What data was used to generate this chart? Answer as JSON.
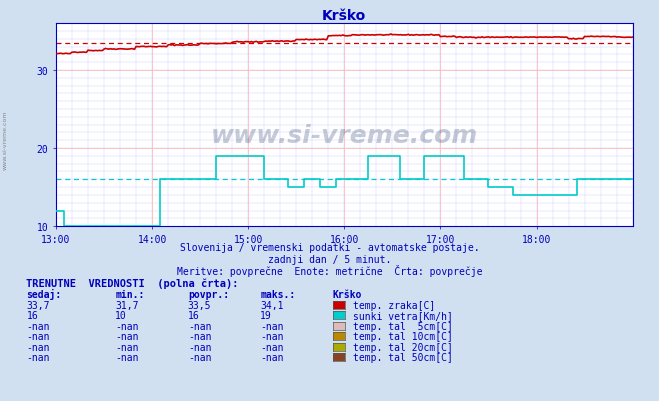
{
  "title": "Krško",
  "bg_color": "#d0e0f0",
  "plot_bg_color": "#ffffff",
  "grid_color_major": "#ffbbbb",
  "grid_color_minor": "#ccccff",
  "xlim": [
    0,
    360
  ],
  "ylim": [
    10,
    36
  ],
  "yticks": [
    10,
    20,
    30
  ],
  "xtick_labels": [
    "13:00",
    "14:00",
    "15:00",
    "16:00",
    "17:00",
    "18:00"
  ],
  "xtick_positions": [
    0,
    60,
    120,
    180,
    240,
    300
  ],
  "temp_color": "#cc0000",
  "wind_color": "#00cccc",
  "temp_avg": 33.5,
  "wind_avg": 16.0,
  "subtitle1": "Slovenija / vremenski podatki - avtomatske postaje.",
  "subtitle2": "zadnji dan / 5 minut.",
  "subtitle3": "Meritve: povprečne  Enote: metrične  Črta: povprečje",
  "table_header": "TRENUTNE  VREDNOSTI  (polna črta):",
  "col_headers": [
    "sedaj:",
    "min.:",
    "povpr.:",
    "maks.:",
    "Krško"
  ],
  "rows": [
    {
      "sedaj": "33,7",
      "min": "31,7",
      "povpr": "33,5",
      "maks": "34,1",
      "color": "#cc0000",
      "label": "temp. zraka[C]"
    },
    {
      "sedaj": "16",
      "min": "10",
      "povpr": "16",
      "maks": "19",
      "color": "#00cccc",
      "label": "sunki vetra[Km/h]"
    },
    {
      "sedaj": "-nan",
      "min": "-nan",
      "povpr": "-nan",
      "maks": "-nan",
      "color": "#ddbbbb",
      "label": "temp. tal  5cm[C]"
    },
    {
      "sedaj": "-nan",
      "min": "-nan",
      "povpr": "-nan",
      "maks": "-nan",
      "color": "#bb8800",
      "label": "temp. tal 10cm[C]"
    },
    {
      "sedaj": "-nan",
      "min": "-nan",
      "povpr": "-nan",
      "maks": "-nan",
      "color": "#aaaa00",
      "label": "temp. tal 20cm[C]"
    },
    {
      "sedaj": "-nan",
      "min": "-nan",
      "povpr": "-nan",
      "maks": "-nan",
      "color": "#884422",
      "label": "temp. tal 50cm[C]"
    }
  ],
  "watermark": "www.si-vreme.com",
  "axis_color": "#0000bb",
  "text_color": "#0000bb"
}
